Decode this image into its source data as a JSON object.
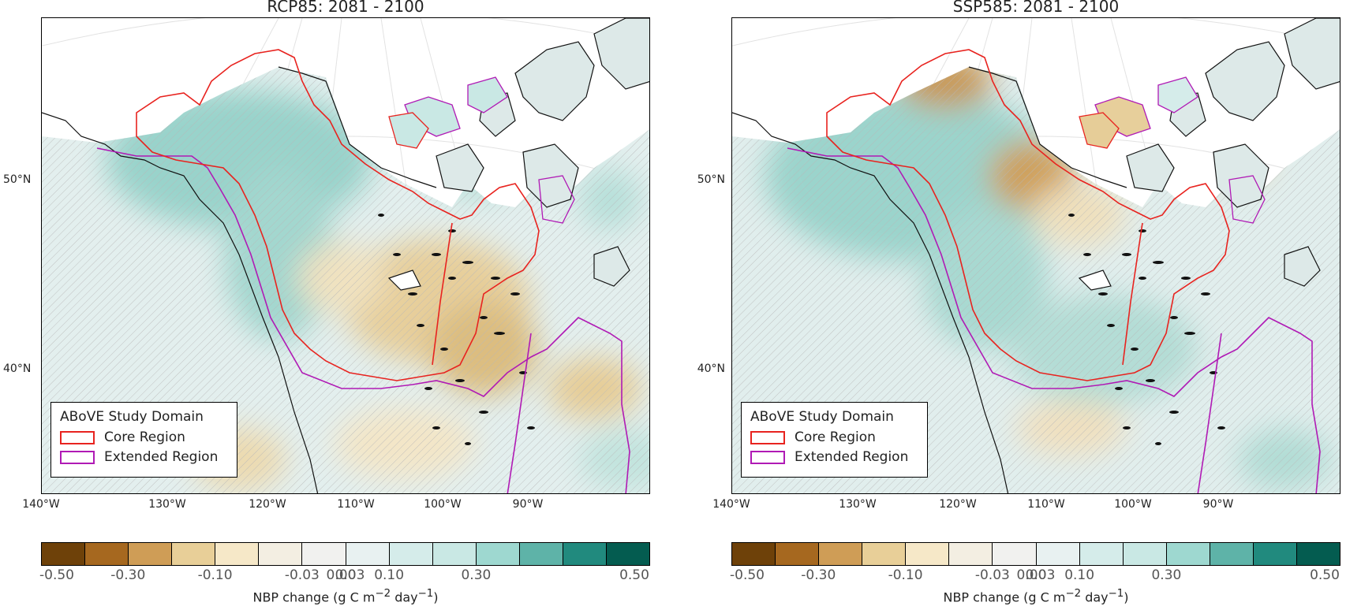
{
  "panels": [
    {
      "title": "RCP85: 2081 - 2100",
      "scenario": "rcp",
      "lat_labels": [
        "50°N",
        "40°N"
      ],
      "lon_labels": [
        "140°W",
        "130°W",
        "120°W",
        "110°W",
        "100°W",
        "90°W"
      ]
    },
    {
      "title": "SSP585: 2081 - 2100",
      "scenario": "ssp",
      "lat_labels": [
        "50°N",
        "40°N"
      ],
      "lon_labels": [
        "140°W",
        "130°W",
        "120°W",
        "110°W",
        "100°W",
        "90°W"
      ]
    }
  ],
  "legend": {
    "title": "ABoVE Study Domain",
    "core_label": "Core Region",
    "extended_label": "Extended Region",
    "core_color": "#e8231f",
    "extended_color": "#b01ab5"
  },
  "colorbar": {
    "tick_labels": [
      "-0.50",
      "-0.30",
      "-0.10",
      "-0.03",
      "0.00",
      "0.03",
      "0.10",
      "0.30",
      "0.50"
    ],
    "colors": [
      "#6e4109",
      "#a6681f",
      "#cf9d56",
      "#e8cf98",
      "#f6e8c8",
      "#f3eee2",
      "#f1f1ef",
      "#e8f1f1",
      "#d5ecea",
      "#c9e8e4",
      "#9ed8d0",
      "#5eb3a8",
      "#218a7e",
      "#045c50"
    ],
    "label_prefix": "NBP change (g C m",
    "label_exp": "−2",
    "label_mid": " day",
    "label_exp2": "−1",
    "label_suffix": ")"
  }
}
